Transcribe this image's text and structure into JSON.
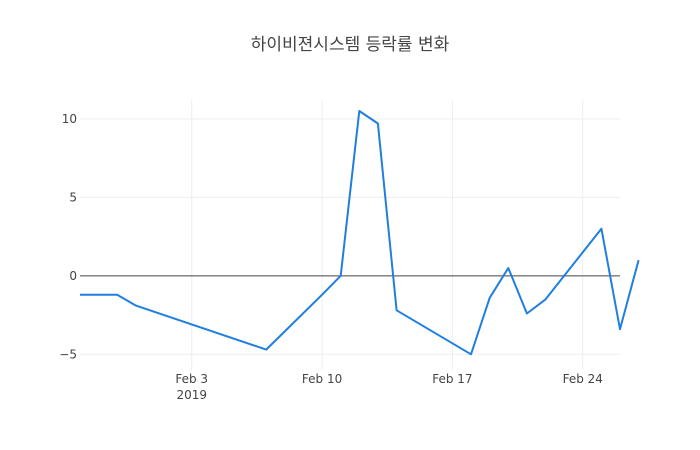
{
  "chart_data": {
    "type": "line",
    "title": "하이비젼시스템 등락률 변화",
    "xlabel": "",
    "ylabel": "",
    "x_range": [
      "2019-01-28",
      "2019-02-26"
    ],
    "ylim": [
      -6,
      11.2
    ],
    "x_ticks": [
      {
        "date": "2019-02-03",
        "label": "Feb 3",
        "sublabel": "2019"
      },
      {
        "date": "2019-02-10",
        "label": "Feb 10",
        "sublabel": ""
      },
      {
        "date": "2019-02-17",
        "label": "Feb 17",
        "sublabel": ""
      },
      {
        "date": "2019-02-24",
        "label": "Feb 24",
        "sublabel": ""
      }
    ],
    "y_ticks": [
      {
        "value": 10,
        "label": "10"
      },
      {
        "value": 5,
        "label": "5"
      },
      {
        "value": 0,
        "label": "0"
      },
      {
        "value": -5,
        "label": "−5"
      }
    ],
    "grid": true,
    "zero_line": true,
    "line_color": "#1f7fe0",
    "series": [
      {
        "x": [
          "2019-01-28",
          "2019-01-30",
          "2019-01-31",
          "2019-02-07",
          "2019-02-10",
          "2019-02-11",
          "2019-02-12",
          "2019-02-13",
          "2019-02-14",
          "2019-02-18",
          "2019-02-19",
          "2019-02-20",
          "2019-02-21",
          "2019-02-22",
          "2019-02-25",
          "2019-02-26",
          "2019-02-27"
        ],
        "y": [
          -1.2,
          -1.2,
          -1.9,
          -4.7,
          -1.2,
          0.0,
          10.5,
          9.7,
          -2.2,
          -5.0,
          -1.4,
          0.5,
          -2.4,
          -1.5,
          3.0,
          -3.4,
          1.0
        ]
      }
    ]
  }
}
